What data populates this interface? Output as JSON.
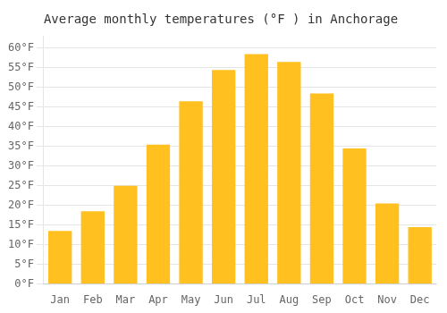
{
  "chart_data": {
    "type": "bar",
    "title": "Average monthly temperatures (°F ) in Anchorage",
    "categories": [
      "Jan",
      "Feb",
      "Mar",
      "Apr",
      "May",
      "Jun",
      "Jul",
      "Aug",
      "Sep",
      "Oct",
      "Nov",
      "Dec"
    ],
    "values": [
      13.5,
      18.5,
      25.0,
      35.5,
      46.5,
      54.5,
      58.5,
      56.5,
      48.5,
      34.5,
      20.5,
      14.5
    ],
    "color": "#FFC020",
    "ylim": [
      0,
      63
    ],
    "yticks": [
      {
        "value": 0,
        "label": "0°F"
      },
      {
        "value": 5,
        "label": "5°F"
      },
      {
        "value": 10,
        "label": "10°F"
      },
      {
        "value": 15,
        "label": "15°F"
      },
      {
        "value": 20,
        "label": "20°F"
      },
      {
        "value": 25,
        "label": "25°F"
      },
      {
        "value": 30,
        "label": "30°F"
      },
      {
        "value": 35,
        "label": "35°F"
      },
      {
        "value": 40,
        "label": "40°F"
      },
      {
        "value": 45,
        "label": "45°F"
      },
      {
        "value": 50,
        "label": "50°F"
      },
      {
        "value": 55,
        "label": "55°F"
      },
      {
        "value": 60,
        "label": "60°F"
      }
    ],
    "grid": true
  }
}
